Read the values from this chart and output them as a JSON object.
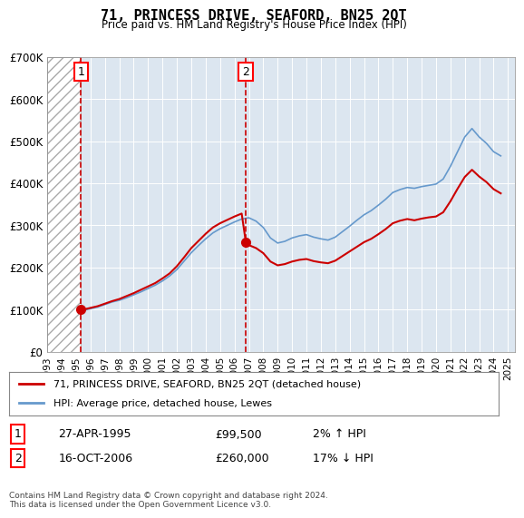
{
  "title": "71, PRINCESS DRIVE, SEAFORD, BN25 2QT",
  "subtitle": "Price paid vs. HM Land Registry's House Price Index (HPI)",
  "xlabel": "",
  "ylabel": "",
  "ylim": [
    0,
    700000
  ],
  "yticks": [
    0,
    100000,
    200000,
    300000,
    400000,
    500000,
    600000,
    700000
  ],
  "ytick_labels": [
    "£0",
    "£100K",
    "£200K",
    "£300K",
    "£400K",
    "£500K",
    "£600K",
    "£700K"
  ],
  "xlim_start": 1993.0,
  "xlim_end": 2025.5,
  "xticks": [
    1993,
    1994,
    1995,
    1996,
    1997,
    1998,
    1999,
    2000,
    2001,
    2002,
    2003,
    2004,
    2005,
    2006,
    2007,
    2008,
    2009,
    2010,
    2011,
    2012,
    2013,
    2014,
    2015,
    2016,
    2017,
    2018,
    2019,
    2020,
    2021,
    2022,
    2023,
    2024,
    2025
  ],
  "hatch_end": 1995.33,
  "purchase1_x": 1995.33,
  "purchase1_y": 99500,
  "purchase1_label": "1",
  "purchase1_date": "27-APR-1995",
  "purchase1_price": "£99,500",
  "purchase1_hpi": "2% ↑ HPI",
  "purchase2_x": 2006.79,
  "purchase2_y": 260000,
  "purchase2_label": "2",
  "purchase2_date": "16-OCT-2006",
  "purchase2_price": "£260,000",
  "purchase2_hpi": "17% ↓ HPI",
  "red_line_color": "#cc0000",
  "blue_line_color": "#6699cc",
  "background_color": "#dce6f0",
  "hatch_color": "#c0c0c0",
  "legend1": "71, PRINCESS DRIVE, SEAFORD, BN25 2QT (detached house)",
  "legend2": "HPI: Average price, detached house, Lewes",
  "footer": "Contains HM Land Registry data © Crown copyright and database right 2024.\nThis data is licensed under the Open Government Licence v3.0.",
  "hpi_years": [
    1995.33,
    1995.5,
    1996.0,
    1996.5,
    1997.0,
    1997.5,
    1998.0,
    1998.5,
    1999.0,
    1999.5,
    2000.0,
    2000.5,
    2001.0,
    2001.5,
    2002.0,
    2002.5,
    2003.0,
    2003.5,
    2004.0,
    2004.5,
    2005.0,
    2005.5,
    2006.0,
    2006.5,
    2007.0,
    2007.5,
    2008.0,
    2008.5,
    2009.0,
    2009.5,
    2010.0,
    2010.5,
    2011.0,
    2011.5,
    2012.0,
    2012.5,
    2013.0,
    2013.5,
    2014.0,
    2014.5,
    2015.0,
    2015.5,
    2016.0,
    2016.5,
    2017.0,
    2017.5,
    2018.0,
    2018.5,
    2019.0,
    2019.5,
    2020.0,
    2020.5,
    2021.0,
    2021.5,
    2022.0,
    2022.5,
    2023.0,
    2023.5,
    2024.0,
    2024.5
  ],
  "hpi_values": [
    97500,
    98000,
    102000,
    106000,
    112000,
    118000,
    122000,
    128000,
    135000,
    142000,
    150000,
    158000,
    168000,
    180000,
    195000,
    215000,
    235000,
    252000,
    268000,
    282000,
    292000,
    300000,
    308000,
    315000,
    318000,
    310000,
    295000,
    270000,
    258000,
    262000,
    270000,
    275000,
    278000,
    272000,
    268000,
    265000,
    272000,
    285000,
    298000,
    312000,
    325000,
    335000,
    348000,
    362000,
    378000,
    385000,
    390000,
    388000,
    392000,
    395000,
    398000,
    410000,
    440000,
    475000,
    510000,
    530000,
    510000,
    495000,
    475000,
    465000
  ],
  "red_years": [
    1995.33,
    1995.5,
    1996.0,
    1996.5,
    1997.0,
    1997.5,
    1998.0,
    1998.5,
    1999.0,
    1999.5,
    2000.0,
    2000.5,
    2001.0,
    2001.5,
    2002.0,
    2002.5,
    2003.0,
    2003.5,
    2004.0,
    2004.5,
    2005.0,
    2005.5,
    2006.0,
    2006.5,
    2006.79,
    2007.0,
    2007.5,
    2008.0,
    2008.5,
    2009.0,
    2009.5,
    2010.0,
    2010.5,
    2011.0,
    2011.5,
    2012.0,
    2012.5,
    2013.0,
    2013.5,
    2014.0,
    2014.5,
    2015.0,
    2015.5,
    2016.0,
    2016.5,
    2017.0,
    2017.5,
    2018.0,
    2018.5,
    2019.0,
    2019.5,
    2020.0,
    2020.5,
    2021.0,
    2021.5,
    2022.0,
    2022.5,
    2023.0,
    2023.5,
    2024.0,
    2024.5
  ],
  "red_values": [
    99500,
    100000,
    104000,
    108000,
    114000,
    120000,
    125000,
    132000,
    139000,
    147000,
    155000,
    163000,
    174000,
    186000,
    203000,
    224000,
    246000,
    263000,
    280000,
    295000,
    305000,
    313000,
    321000,
    328000,
    260000,
    253000,
    246000,
    234000,
    214000,
    205000,
    208000,
    214000,
    218000,
    220000,
    215000,
    212000,
    210000,
    216000,
    227000,
    238000,
    249000,
    260000,
    268000,
    279000,
    291000,
    305000,
    311000,
    315000,
    312000,
    316000,
    319000,
    321000,
    331000,
    357000,
    387000,
    415000,
    432000,
    416000,
    403000,
    386000,
    376000
  ]
}
